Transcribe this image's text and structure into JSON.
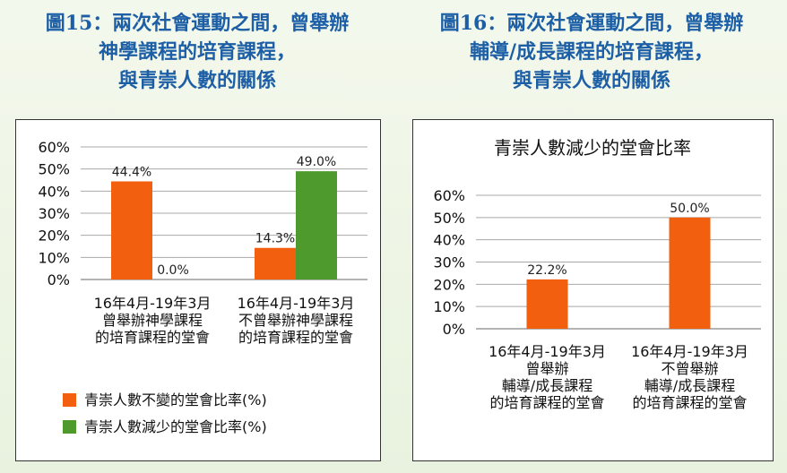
{
  "figure15": {
    "title_lines": [
      "圖15：兩次社會運動之間，曾舉辦",
      "神學課程的培育課程，",
      "與青崇人數的關係"
    ]
  },
  "figure16": {
    "title_lines": [
      "圖16：兩次社會運動之間，曾舉辦",
      "輔導/成長課程的培育課程，",
      "與青崇人數的關係"
    ]
  },
  "colors": {
    "orange": "#f2600f",
    "green": "#4e9a2c",
    "title": "#1d5fa6",
    "grid": "#9a9a9a"
  },
  "chart_data": [
    {
      "type": "bar",
      "title": "",
      "ylim": [
        0,
        60
      ],
      "yticks": [
        "0%",
        "10%",
        "20%",
        "30%",
        "40%",
        "50%",
        "60%"
      ],
      "categories": [
        [
          "16年4月-19年3月",
          "曾舉辦神學課程",
          "的培育課程的堂會"
        ],
        [
          "16年4月-19年3月",
          "不曾舉辦神學課程",
          "的培育課程的堂會"
        ]
      ],
      "series": [
        {
          "name": "青崇人數不變的堂會比率(%)",
          "values": [
            44.4,
            14.3
          ],
          "labels": [
            "44.4%",
            "14.3%"
          ],
          "color": "#f2600f"
        },
        {
          "name": "青崇人數減少的堂會比率(%)",
          "values": [
            0.0,
            49.0
          ],
          "labels": [
            "0.0%",
            "49.0%"
          ],
          "color": "#4e9a2c"
        }
      ],
      "legend": "bottom",
      "grid": true
    },
    {
      "type": "bar",
      "title": "青崇人數減少的堂會比率",
      "ylim": [
        0,
        60
      ],
      "yticks": [
        "0%",
        "10%",
        "20%",
        "30%",
        "40%",
        "50%",
        "60%"
      ],
      "categories": [
        [
          "16年4月-19年3月",
          "曾舉辦",
          "輔導/成長課程",
          "的培育課程的堂會"
        ],
        [
          "16年4月-19年3月",
          "不曾舉辦",
          "輔導/成長課程",
          "的培育課程的堂會"
        ]
      ],
      "series": [
        {
          "values": [
            22.2,
            50.0
          ],
          "labels": [
            "22.2%",
            "50.0%"
          ],
          "color": "#f2600f"
        }
      ],
      "legend": "none",
      "grid": true
    }
  ]
}
